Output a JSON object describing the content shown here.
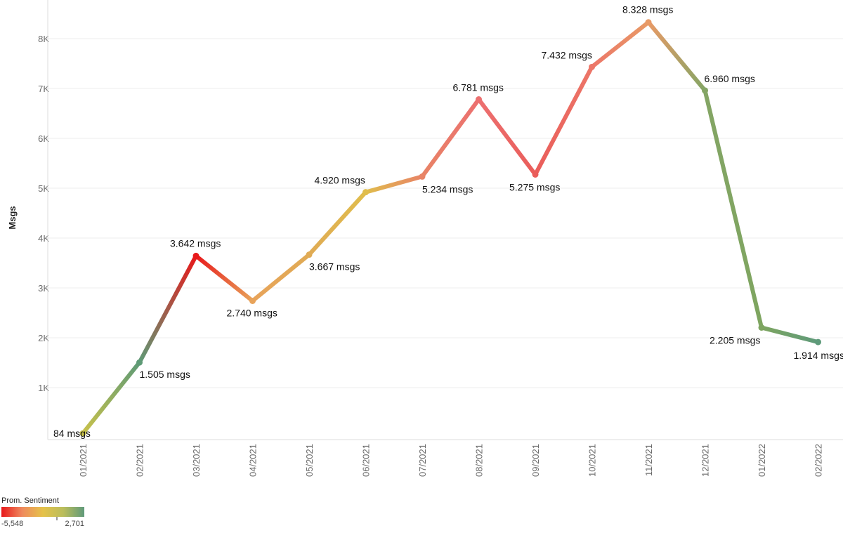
{
  "chart_data": {
    "type": "line",
    "ylabel": "Msgs",
    "xlabel": "",
    "ylim": [
      0,
      8600
    ],
    "yticks": [
      {
        "value": 1000,
        "label": "1K"
      },
      {
        "value": 2000,
        "label": "2K"
      },
      {
        "value": 3000,
        "label": "3K"
      },
      {
        "value": 4000,
        "label": "4K"
      },
      {
        "value": 5000,
        "label": "5K"
      },
      {
        "value": 6000,
        "label": "6K"
      },
      {
        "value": 7000,
        "label": "7K"
      },
      {
        "value": 8000,
        "label": "8K"
      }
    ],
    "grid": true,
    "categories": [
      "01/2021",
      "02/2021",
      "03/2021",
      "04/2021",
      "05/2021",
      "06/2021",
      "07/2021",
      "08/2021",
      "09/2021",
      "10/2021",
      "11/2021",
      "12/2021",
      "01/2022",
      "02/2022"
    ],
    "values": [
      84,
      1505,
      3642,
      2740,
      3667,
      4920,
      5234,
      6781,
      5275,
      7432,
      8328,
      6960,
      2205,
      1914
    ],
    "data_labels": [
      "84 msgs",
      "1.505 msgs",
      "3.642 msgs",
      "2.740 msgs",
      "3.667 msgs",
      "4.920 msgs",
      "5.234 msgs",
      "6.781 msgs",
      "5.275 msgs",
      "7.432 msgs",
      "8.328 msgs",
      "6.960 msgs",
      "2.205 msgs",
      "1.914 msgs"
    ],
    "color_encoding": {
      "field": "Prom. Sentiment",
      "min": -5548,
      "max": 2701,
      "min_label": "-5,548",
      "max_label": "2,701",
      "gradient": [
        "#e8191b",
        "#ef8a5e",
        "#e5c24a",
        "#b9bd5c",
        "#5f9a7a"
      ],
      "point_colors": [
        "#c9c24b",
        "#5e9a76",
        "#e8191b",
        "#e8a35a",
        "#e0ab55",
        "#e0bd4c",
        "#e88466",
        "#ec7070",
        "#ea5d5a",
        "#ec7668",
        "#e89a66",
        "#84a565",
        "#7ea560",
        "#5e9a7a"
      ]
    },
    "legend": {
      "title": "Prom. Sentiment",
      "placement": "bottom-left"
    }
  }
}
